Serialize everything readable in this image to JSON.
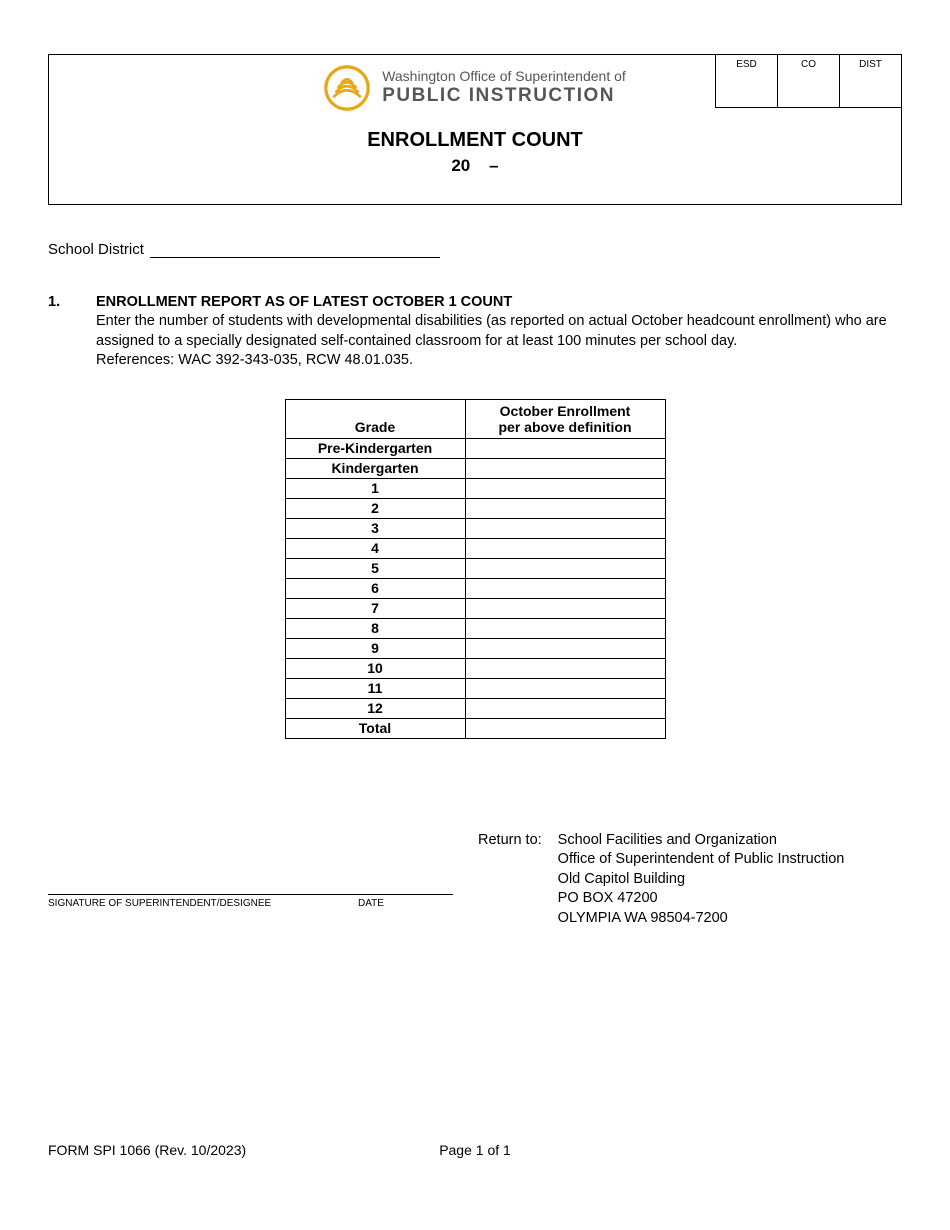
{
  "header": {
    "logo_color": "#e6a817",
    "org_line1": "Washington Office of Superintendent of",
    "org_line2": "PUBLIC INSTRUCTION",
    "title": "ENROLLMENT COUNT",
    "year_prefix": "20",
    "year_sep": "–",
    "codes": [
      "ESD",
      "CO",
      "DIST"
    ]
  },
  "district": {
    "label": "School District"
  },
  "section1": {
    "number": "1.",
    "heading": "ENROLLMENT REPORT AS OF LATEST OCTOBER 1 COUNT",
    "body1": "Enter the number of students with developmental disabilities (as reported on actual October headcount enrollment) who are assigned to a specially designated self-contained classroom for at least 100 minutes per school day.",
    "body2": "References: WAC 392-343-035, RCW 48.01.035."
  },
  "table": {
    "col1": "Grade",
    "col2_line1": "October Enrollment",
    "col2_line2": "per above definition",
    "rows": [
      "Pre-Kindergarten",
      "Kindergarten",
      "1",
      "2",
      "3",
      "4",
      "5",
      "6",
      "7",
      "8",
      "9",
      "10",
      "11",
      "12",
      "Total"
    ]
  },
  "signature": {
    "label1": "SIGNATURE OF SUPERINTENDENT/DESIGNEE",
    "label2": "DATE"
  },
  "return": {
    "label": "Return to:",
    "lines": [
      "School Facilities and Organization",
      "Office of Superintendent of Public Instruction",
      "Old Capitol Building",
      "PO BOX 47200",
      "OLYMPIA WA 98504-7200"
    ]
  },
  "footer": {
    "form": "FORM SPI 1066 (Rev. 10/2023)",
    "page": "Page 1 of 1"
  }
}
